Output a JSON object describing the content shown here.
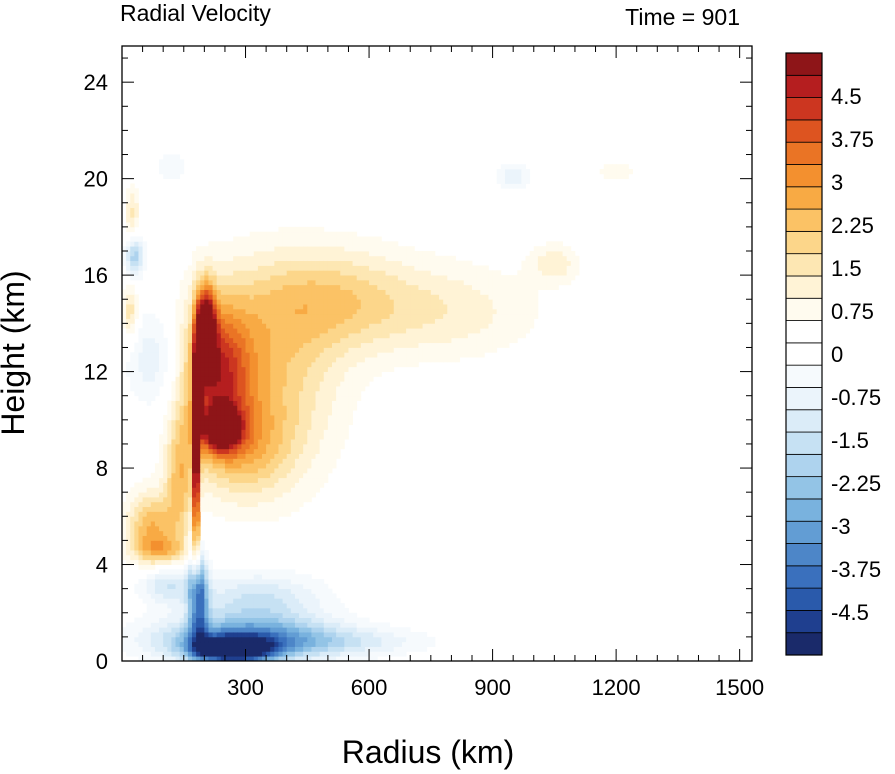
{
  "chart_data": {
    "type": "heatmap",
    "title": "Radial Velocity",
    "subtitle": "Time = 901",
    "xlabel": "Radius (km)",
    "ylabel": "Height (km)",
    "xlim": [
      0,
      1530
    ],
    "ylim": [
      0,
      25.5
    ],
    "x_ticks": [
      300,
      600,
      900,
      1200,
      1500
    ],
    "y_ticks": [
      0,
      4,
      8,
      12,
      16,
      20,
      24
    ],
    "colorbar": {
      "min": -5.25,
      "max": 5.25,
      "step": 0.375,
      "labels": [
        4.5,
        3.75,
        3,
        2.25,
        1.5,
        0.75,
        0,
        -0.75,
        -1.5,
        -2.25,
        -3,
        -3.75,
        -4.5
      ],
      "label_text": [
        "4.5",
        "3.75",
        "3",
        "2.25",
        "1.5",
        "0.75",
        "0",
        "-0.75",
        "-1.5",
        "-2.25",
        "-3",
        "-3.75",
        "-4.5"
      ],
      "colors": [
        "#1a2a6a",
        "#1f3f8f",
        "#2a5aab",
        "#3a70bd",
        "#4d86c8",
        "#629dd4",
        "#79b2de",
        "#93c4e6",
        "#aed3ee",
        "#c6e1f3",
        "#dbecf8",
        "#ebf4fb",
        "#f6fafd",
        "#ffffff",
        "#ffffff",
        "#fffbef",
        "#fff3d6",
        "#fde7b3",
        "#fcd68a",
        "#fbc265",
        "#f8aa44",
        "#f3902f",
        "#ea7425",
        "#dd5420",
        "#cc3620",
        "#b51e1f",
        "#8e1518"
      ]
    },
    "features": [
      {
        "name": "eyewall outflow maximum",
        "x": 200,
        "y": 14,
        "value": 5.0
      },
      {
        "name": "eyewall outflow core",
        "x": 230,
        "y": 9.5,
        "value": 4.2
      },
      {
        "name": "narrow eyewall jet",
        "x": 180,
        "y": 8,
        "value": 5.0
      },
      {
        "name": "boundary layer inflow",
        "x": 270,
        "y": 0.5,
        "value": -4.8
      },
      {
        "name": "low-level inflow",
        "x": 190,
        "y": 2,
        "value": -3.8
      },
      {
        "name": "upper inflow near axis",
        "x": 30,
        "y": 17,
        "value": -2.0
      },
      {
        "name": "upper outflow plume",
        "x": 500,
        "y": 14,
        "value": 1.5
      },
      {
        "name": "outer outflow blob",
        "x": 1050,
        "y": 16.5,
        "value": 0.9
      },
      {
        "name": "upper weak inflow",
        "x": 950,
        "y": 20,
        "value": -0.7
      }
    ]
  }
}
